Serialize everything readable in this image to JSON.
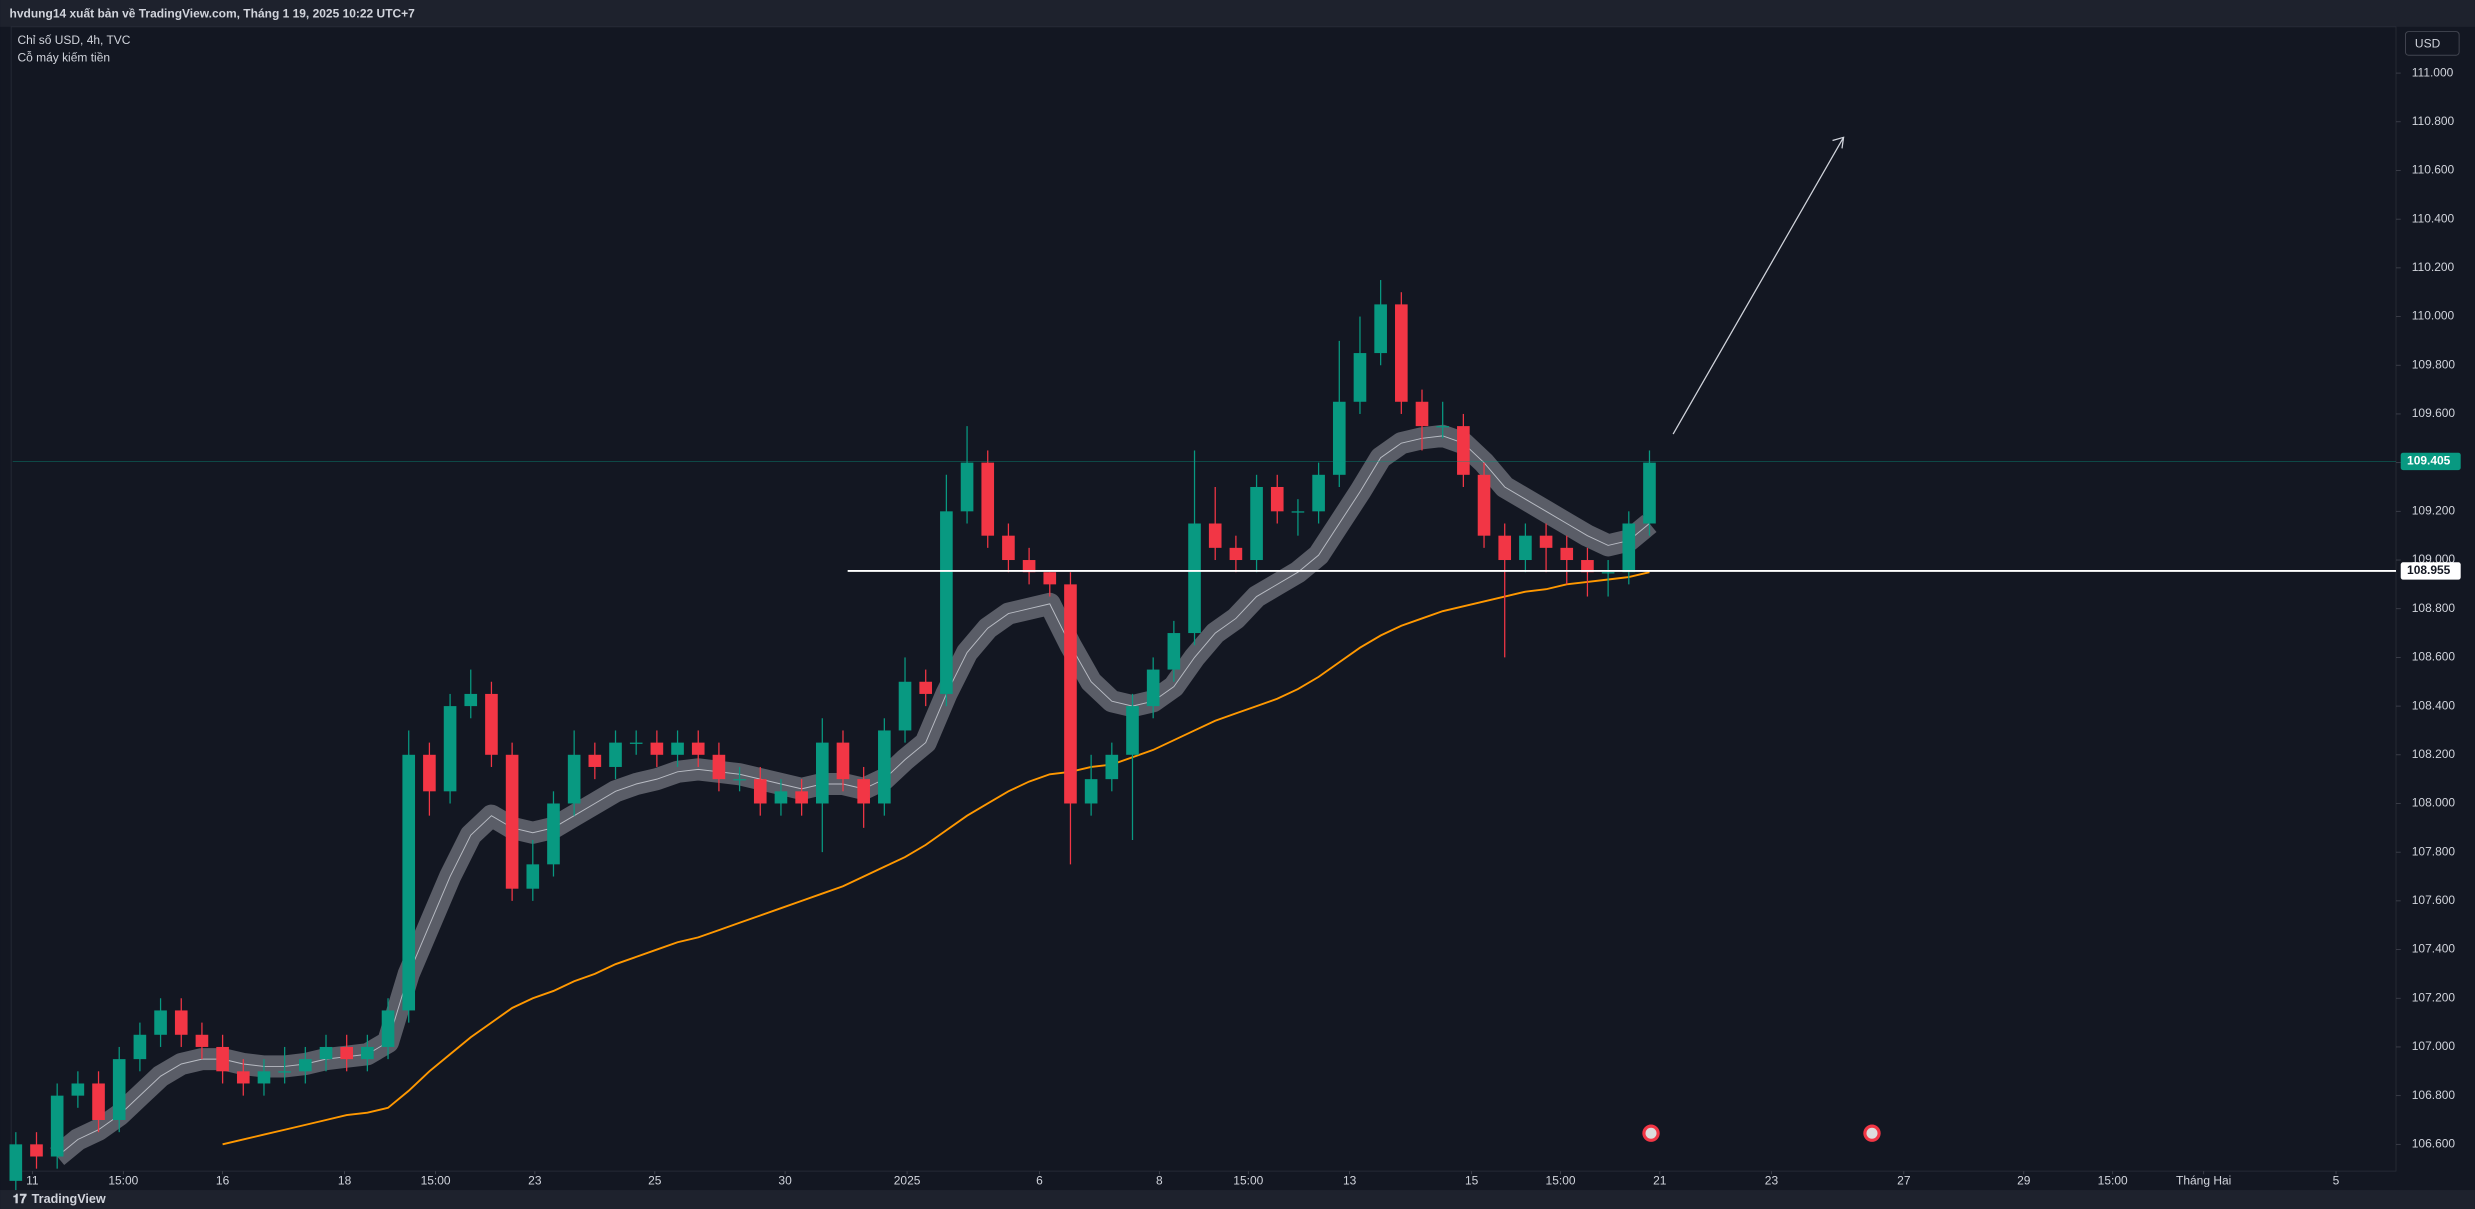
{
  "header": {
    "publisher": "hvdung14 xuất bản về TradingView.com, Tháng 1 19, 2025 10:22 UTC+7",
    "symbol": "Chỉ số USD, 4h, TVC",
    "note": "Cỗ máy kiếm tiền",
    "currency": "USD",
    "brand": "TradingView"
  },
  "chart_data": {
    "type": "candlestick",
    "up_color": "#089981",
    "down_color": "#f23645",
    "open": [
      106.45,
      106.6,
      106.55,
      106.8,
      106.85,
      106.7,
      106.95,
      107.05,
      107.15,
      107.05,
      107.0,
      106.9,
      106.85,
      106.9,
      106.9,
      106.95,
      107.0,
      106.95,
      107.0,
      107.15,
      108.2,
      108.05,
      108.4,
      108.45,
      108.2,
      107.65,
      107.75,
      108.0,
      108.2,
      108.15,
      108.25,
      108.25,
      108.2,
      108.25,
      108.2,
      108.1,
      108.1,
      108.0,
      108.05,
      108.0,
      108.25,
      108.1,
      108.0,
      108.3,
      108.5,
      108.45,
      109.2,
      109.4,
      109.1,
      109.0,
      108.95,
      108.9,
      108.0,
      108.1,
      108.2,
      108.4,
      108.55,
      108.7,
      109.15,
      109.05,
      109.0,
      109.3,
      109.2,
      109.2,
      109.35,
      109.65,
      109.85,
      110.05,
      109.65,
      109.55,
      109.55,
      109.35,
      109.1,
      109.0,
      109.1,
      109.05,
      109.0,
      108.95,
      108.95,
      109.15
    ],
    "high": [
      106.65,
      106.65,
      106.85,
      106.9,
      106.9,
      107.0,
      107.1,
      107.2,
      107.2,
      107.1,
      107.05,
      106.95,
      106.95,
      107.0,
      107.0,
      107.05,
      107.05,
      107.05,
      107.2,
      108.3,
      108.25,
      108.45,
      108.55,
      108.5,
      108.25,
      107.85,
      108.05,
      108.3,
      108.25,
      108.3,
      108.3,
      108.3,
      108.3,
      108.3,
      108.25,
      108.15,
      108.15,
      108.1,
      108.1,
      108.35,
      108.3,
      108.15,
      108.35,
      108.6,
      108.55,
      109.35,
      109.55,
      109.45,
      109.15,
      109.05,
      108.95,
      108.95,
      108.2,
      108.25,
      108.45,
      108.6,
      108.75,
      109.45,
      109.3,
      109.1,
      109.35,
      109.35,
      109.25,
      109.4,
      109.9,
      110.0,
      110.15,
      110.1,
      109.7,
      109.65,
      109.6,
      109.4,
      109.15,
      109.15,
      109.15,
      109.1,
      109.05,
      109.0,
      109.2,
      109.45
    ],
    "low": [
      106.4,
      106.5,
      106.5,
      106.75,
      106.65,
      106.65,
      106.9,
      107.0,
      107.0,
      106.95,
      106.85,
      106.8,
      106.8,
      106.85,
      106.85,
      106.9,
      106.9,
      106.9,
      106.95,
      107.1,
      107.95,
      108.0,
      108.35,
      108.15,
      107.6,
      107.6,
      107.7,
      107.95,
      108.1,
      108.1,
      108.2,
      108.15,
      108.15,
      108.15,
      108.05,
      108.05,
      107.95,
      107.95,
      107.95,
      107.8,
      108.05,
      107.9,
      107.95,
      108.25,
      108.4,
      108.4,
      109.15,
      109.05,
      108.95,
      108.9,
      108.85,
      107.75,
      107.95,
      108.05,
      107.85,
      108.35,
      108.5,
      108.65,
      109.0,
      108.95,
      108.95,
      109.15,
      109.1,
      109.15,
      109.3,
      109.6,
      109.8,
      109.6,
      109.45,
      109.5,
      109.3,
      109.05,
      108.6,
      108.95,
      108.95,
      108.9,
      108.85,
      108.85,
      108.9,
      109.1
    ],
    "close": [
      106.6,
      106.55,
      106.8,
      106.85,
      106.7,
      106.95,
      107.05,
      107.15,
      107.05,
      107.0,
      106.9,
      106.85,
      106.9,
      106.9,
      106.95,
      107.0,
      106.95,
      107.0,
      107.15,
      108.2,
      108.05,
      108.4,
      108.45,
      108.2,
      107.65,
      107.75,
      108.0,
      108.2,
      108.15,
      108.25,
      108.25,
      108.2,
      108.25,
      108.2,
      108.1,
      108.1,
      108.0,
      108.05,
      108.0,
      108.25,
      108.1,
      108.0,
      108.3,
      108.5,
      108.45,
      109.2,
      109.4,
      109.1,
      109.0,
      108.95,
      108.9,
      108.0,
      108.1,
      108.2,
      108.4,
      108.55,
      108.7,
      109.15,
      109.05,
      109.0,
      109.3,
      109.2,
      109.2,
      109.35,
      109.65,
      109.85,
      110.05,
      109.65,
      109.55,
      109.55,
      109.35,
      109.1,
      109.0,
      109.1,
      109.05,
      109.0,
      108.95,
      108.95,
      109.15,
      109.4
    ],
    "band": {
      "color": "#9598a1",
      "values": [
        null,
        null,
        106.55,
        106.62,
        106.66,
        106.72,
        106.8,
        106.88,
        106.93,
        106.95,
        106.95,
        106.93,
        106.92,
        106.92,
        106.93,
        106.95,
        106.96,
        106.97,
        107.02,
        107.3,
        107.5,
        107.7,
        107.87,
        107.95,
        107.9,
        107.88,
        107.9,
        107.95,
        108.0,
        108.05,
        108.08,
        108.1,
        108.13,
        108.14,
        108.13,
        108.12,
        108.1,
        108.08,
        108.06,
        108.08,
        108.08,
        108.06,
        108.1,
        108.18,
        108.25,
        108.45,
        108.62,
        108.72,
        108.78,
        108.8,
        108.82,
        108.65,
        108.5,
        108.42,
        108.4,
        108.42,
        108.48,
        108.6,
        108.7,
        108.76,
        108.85,
        108.9,
        108.95,
        109.02,
        109.15,
        109.28,
        109.42,
        109.48,
        109.5,
        109.51,
        109.48,
        109.4,
        109.3,
        109.25,
        109.2,
        109.15,
        109.1,
        109.06,
        109.08,
        109.15
      ]
    },
    "ma": {
      "color": "#ff9800",
      "values": [
        null,
        null,
        null,
        null,
        null,
        null,
        null,
        null,
        null,
        null,
        106.6,
        106.62,
        106.64,
        106.66,
        106.68,
        106.7,
        106.72,
        106.73,
        106.75,
        106.82,
        106.9,
        106.97,
        107.04,
        107.1,
        107.16,
        107.2,
        107.23,
        107.27,
        107.3,
        107.34,
        107.37,
        107.4,
        107.43,
        107.45,
        107.48,
        107.51,
        107.54,
        107.57,
        107.6,
        107.63,
        107.66,
        107.7,
        107.74,
        107.78,
        107.83,
        107.89,
        107.95,
        108.0,
        108.05,
        108.09,
        108.12,
        108.13,
        108.15,
        108.16,
        108.19,
        108.22,
        108.26,
        108.3,
        108.34,
        108.37,
        108.4,
        108.43,
        108.47,
        108.52,
        108.58,
        108.64,
        108.69,
        108.73,
        108.76,
        108.79,
        108.81,
        108.83,
        108.85,
        108.87,
        108.88,
        108.9,
        108.91,
        108.92,
        108.93,
        108.95
      ]
    },
    "levels": [
      {
        "value": 108.955,
        "color": "#ffffff"
      },
      {
        "value": 109.405,
        "color": "#089981"
      }
    ],
    "xlim": [
      -0.15,
      115.1
    ],
    "ylim": [
      106.49,
      111.19
    ],
    "xticks": [
      {
        "value": 0.8,
        "label": "11"
      },
      {
        "value": 5.2,
        "label": "15:00"
      },
      {
        "value": 10,
        "label": "16"
      },
      {
        "value": 15.9,
        "label": "18"
      },
      {
        "value": 20.3,
        "label": "15:00"
      },
      {
        "value": 25.1,
        "label": "23"
      },
      {
        "value": 30.9,
        "label": "25"
      },
      {
        "value": 37.2,
        "label": "30"
      },
      {
        "value": 43.1,
        "label": "2025"
      },
      {
        "value": 49.5,
        "label": "6"
      },
      {
        "value": 55.3,
        "label": "8"
      },
      {
        "value": 59.6,
        "label": "15:00"
      },
      {
        "value": 64.5,
        "label": "13"
      },
      {
        "value": 70.4,
        "label": "15"
      },
      {
        "value": 74.7,
        "label": "15:00"
      },
      {
        "value": 79.5,
        "label": "21"
      },
      {
        "value": 84.9,
        "label": "23"
      },
      {
        "value": 91.3,
        "label": "27"
      },
      {
        "value": 97.1,
        "label": "29"
      },
      {
        "value": 101.4,
        "label": "15:00"
      },
      {
        "value": 105.8,
        "label": "Tháng Hai"
      },
      {
        "value": 112.2,
        "label": "5"
      }
    ],
    "yticks": [
      {
        "value": 106.6,
        "label": "106.600"
      },
      {
        "value": 106.8,
        "label": "106.800"
      },
      {
        "value": 107,
        "label": "107.000"
      },
      {
        "value": 107.2,
        "label": "107.200"
      },
      {
        "value": 107.4,
        "label": "107.400"
      },
      {
        "value": 107.6,
        "label": "107.600"
      },
      {
        "value": 107.8,
        "label": "107.800"
      },
      {
        "value": 108,
        "label": "108.000"
      },
      {
        "value": 108.2,
        "label": "108.200"
      },
      {
        "value": 108.4,
        "label": "108.400"
      },
      {
        "value": 108.6,
        "label": "108.600"
      },
      {
        "value": 108.8,
        "label": "108.800"
      },
      {
        "value": 109,
        "label": "109.000"
      },
      {
        "value": 109.2,
        "label": "109.200"
      },
      {
        "value": 109.4,
        "label": "109.400"
      },
      {
        "value": 109.6,
        "label": "109.600"
      },
      {
        "value": 109.8,
        "label": "109.800"
      },
      {
        "value": 110,
        "label": "110.000"
      },
      {
        "value": 110.2,
        "label": "110.200"
      },
      {
        "value": 110.4,
        "label": "110.400"
      },
      {
        "value": 110.6,
        "label": "110.600"
      },
      {
        "value": 110.8,
        "label": "110.800"
      },
      {
        "value": 111,
        "label": "111.000"
      }
    ]
  }
}
